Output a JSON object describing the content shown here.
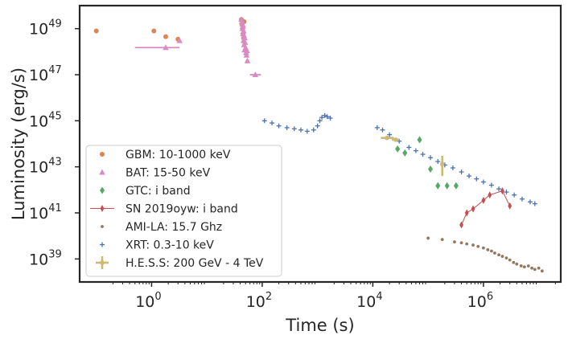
{
  "chart_data": {
    "type": "scatter",
    "xlabel": "Time (s)",
    "ylabel": "Luminosity (erg/s)",
    "xscale": "log",
    "yscale": "log",
    "xlim": [
      0.05,
      25000000
    ],
    "ylim": [
      1e+38,
      1e+50
    ],
    "xticks": [
      {
        "value": 1,
        "base": "10",
        "exp": "0"
      },
      {
        "value": 100,
        "base": "10",
        "exp": "2"
      },
      {
        "value": 10000,
        "base": "10",
        "exp": "4"
      },
      {
        "value": 1000000,
        "base": "10",
        "exp": "6"
      }
    ],
    "yticks": [
      {
        "value": 1e+39,
        "base": "10",
        "exp": "39"
      },
      {
        "value": 1e+41,
        "base": "10",
        "exp": "41"
      },
      {
        "value": 1e+43,
        "base": "10",
        "exp": "43"
      },
      {
        "value": 1e+45,
        "base": "10",
        "exp": "45"
      },
      {
        "value": 1e+47,
        "base": "10",
        "exp": "47"
      },
      {
        "value": 1e+49,
        "base": "10",
        "exp": "49"
      }
    ],
    "legend_position": "lower-left",
    "series": [
      {
        "name": "GBM: 10-1000 keV",
        "marker": "dot",
        "color": "#dd8452",
        "points": [
          [
            0.1,
            8e+48
          ],
          [
            1.1,
            8e+48
          ],
          [
            1.8,
            4.5e+48
          ],
          [
            3.0,
            3.5e+48
          ],
          [
            42,
            2.5e+49
          ],
          [
            43,
            1.5e+49
          ],
          [
            44,
            1e+49
          ],
          [
            45,
            6e+48
          ],
          [
            46,
            4e+48
          ],
          [
            47,
            2e+49
          ]
        ]
      },
      {
        "name": "BAT: 15-50 keV",
        "marker": "triangle",
        "color": "#da8bc3",
        "points": [
          {
            "x": 1.8,
            "y": 1.5e+48,
            "xerr": [
              0.5,
              3.2
            ]
          },
          {
            "x": 3.2,
            "y": 3e+48
          },
          {
            "x": 42,
            "y": 2.5e+49
          },
          {
            "x": 43,
            "y": 2e+49
          },
          {
            "x": 44,
            "y": 1.6e+49
          },
          {
            "x": 45,
            "y": 1.3e+49
          },
          {
            "x": 44,
            "y": 1e+49
          },
          {
            "x": 46,
            "y": 8e+48
          },
          {
            "x": 45,
            "y": 6e+48
          },
          {
            "x": 47,
            "y": 5e+48
          },
          {
            "x": 48,
            "y": 4e+48
          },
          {
            "x": 46,
            "y": 3e+48
          },
          {
            "x": 49,
            "y": 2.5e+48
          },
          {
            "x": 47,
            "y": 2e+48
          },
          {
            "x": 50,
            "y": 1.5e+48
          },
          {
            "x": 48,
            "y": 1.2e+48
          },
          {
            "x": 51,
            "y": 9e+47
          },
          {
            "x": 52,
            "y": 7e+47
          },
          {
            "x": 53,
            "y": 1.1e+48
          },
          {
            "x": 54,
            "y": 4e+47
          },
          {
            "x": 75,
            "y": 1e+47,
            "xerr": [
              60,
              95
            ]
          }
        ]
      },
      {
        "name": "GTC: i band",
        "marker": "diamond",
        "color": "#55a868",
        "points": [
          [
            28000,
            6e+43
          ],
          [
            38000,
            4e+43
          ],
          [
            70000,
            1.5e+44
          ],
          [
            110000,
            8e+42
          ],
          [
            150000,
            1.5e+42
          ],
          [
            220000,
            1.5e+42
          ],
          [
            320000,
            1.5e+42
          ]
        ]
      },
      {
        "name": "SN 2019oyw: i band",
        "marker": "thin_diamond",
        "color": "#c44e52",
        "connected": true,
        "points": [
          [
            400000,
            3e+40
          ],
          [
            500000,
            1e+41
          ],
          [
            650000,
            1.5e+41
          ],
          [
            1000000,
            3.5e+41
          ],
          [
            1300000,
            6e+41
          ],
          [
            2200000,
            9e+41
          ],
          [
            3000000,
            2e+41
          ]
        ]
      },
      {
        "name": "AMI-LA: 15.7 Ghz",
        "marker": "smalldot",
        "color": "#937860",
        "points": [
          [
            100000,
            8e+39
          ],
          [
            180000,
            7e+39
          ],
          [
            300000,
            5.5e+39
          ],
          [
            400000,
            5e+39
          ],
          [
            500000,
            4.5e+39
          ],
          [
            650000,
            4e+39
          ],
          [
            800000,
            3.5e+39
          ],
          [
            1000000,
            3e+39
          ],
          [
            1200000,
            2.5e+39
          ],
          [
            1400000,
            2.2e+39
          ],
          [
            1600000,
            1.8e+39
          ],
          [
            1900000,
            1.5e+39
          ],
          [
            2200000,
            1.3e+39
          ],
          [
            2600000,
            1.1e+39
          ],
          [
            3000000,
            9e+38
          ],
          [
            3500000,
            7e+38
          ],
          [
            4000000,
            6e+38
          ],
          [
            4800000,
            5e+38
          ],
          [
            5500000,
            4.5e+38
          ],
          [
            6500000,
            5e+38
          ],
          [
            7500000,
            4e+38
          ],
          [
            8500000,
            3.5e+38
          ],
          [
            10000000,
            4e+38
          ],
          [
            11500000,
            3e+38
          ]
        ]
      },
      {
        "name": "XRT: 0.3-10 keV",
        "marker": "plus",
        "color": "#4c72b0",
        "points": [
          [
            110,
            1e+45
          ],
          [
            150,
            8e+44
          ],
          [
            200,
            6e+44
          ],
          [
            280,
            5e+44
          ],
          [
            380,
            4.5e+44
          ],
          [
            500,
            4e+44
          ],
          [
            650,
            3.5e+44
          ],
          [
            850,
            4e+44
          ],
          [
            1000,
            6e+44
          ],
          [
            1100,
            1e+45
          ],
          [
            1200,
            1.4e+45
          ],
          [
            1350,
            1.7e+45
          ],
          [
            1500,
            1.5e+45
          ],
          [
            1700,
            1.3e+45
          ],
          [
            12000,
            5e+44
          ],
          [
            15000,
            4e+44
          ],
          [
            20000,
            2.5e+44
          ],
          [
            30000,
            1.3e+44
          ],
          [
            45000,
            7e+43
          ],
          [
            60000,
            5e+43
          ],
          [
            80000,
            3.5e+43
          ],
          [
            110000,
            2.5e+43
          ],
          [
            150000,
            1.7e+43
          ],
          [
            200000,
            1.2e+43
          ],
          [
            280000,
            9e+42
          ],
          [
            400000,
            6e+42
          ],
          [
            550000,
            4e+42
          ],
          [
            750000,
            3e+42
          ],
          [
            1000000,
            2.2e+42
          ],
          [
            1400000,
            1.6e+42
          ],
          [
            1900000,
            1.1e+42
          ],
          [
            2600000,
            8e+41
          ],
          [
            3600000,
            6e+41
          ],
          [
            5000000,
            4e+41
          ],
          [
            7000000,
            3e+41
          ],
          [
            8500000,
            2.5e+41
          ]
        ]
      },
      {
        "name": "H.E.S.S: 200 GeV - 4 TeV",
        "marker": "errorbar",
        "color": "#ccb974",
        "points": [
          {
            "x": 18000,
            "y": 1.8e+44,
            "xerr": [
              14000,
              24000
            ]
          },
          {
            "x": 26000,
            "y": 1.5e+44,
            "xerr": [
              22000,
              30000
            ]
          },
          {
            "x": 180000,
            "y": 1.3e+43,
            "yerr": [
              4e+42,
              3e+43
            ]
          }
        ]
      }
    ]
  }
}
